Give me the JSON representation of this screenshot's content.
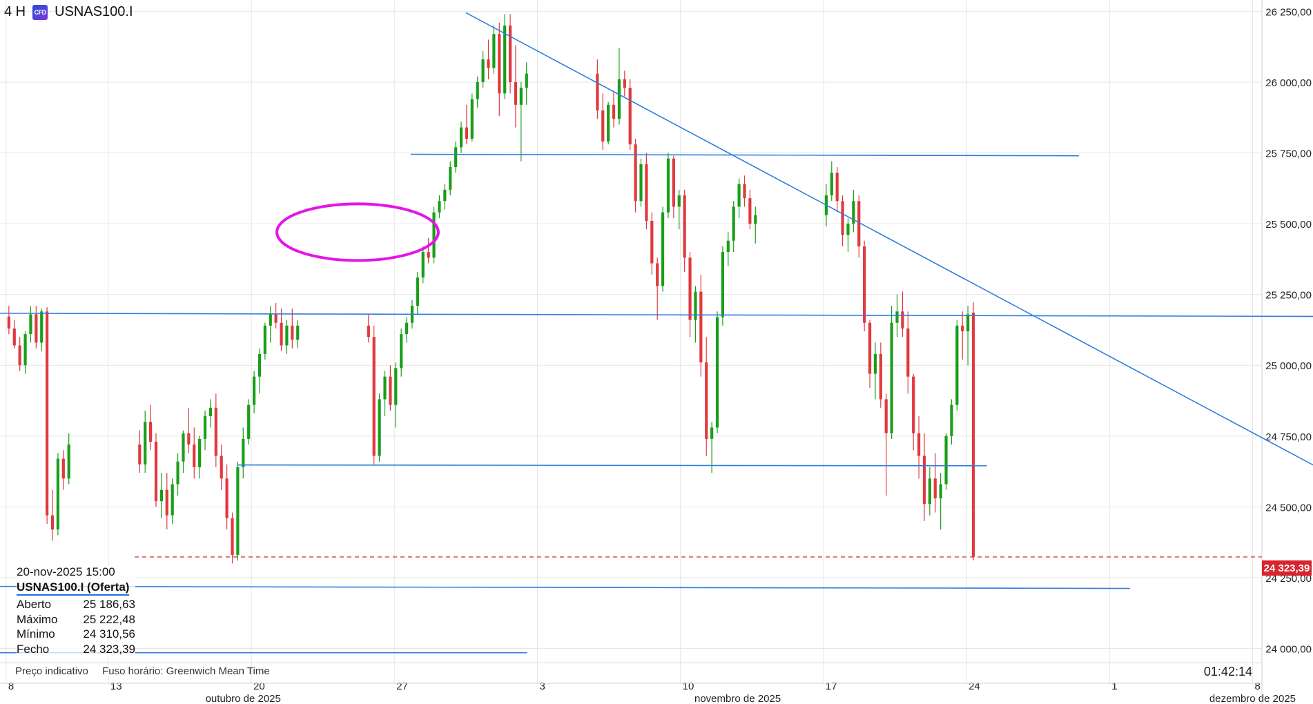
{
  "header": {
    "timeframe": "4 H",
    "symbol": "USNAS100.I",
    "cfd_icon": "cfd-icon"
  },
  "info_panel": {
    "datetime": "20-nov-2025 15:00",
    "symbol": "USNAS100.I (Oferta)",
    "rows": [
      {
        "label": "Aberto",
        "value": "25 186,63"
      },
      {
        "label": "Máximo",
        "value": "25 222,48"
      },
      {
        "label": "Mínimo",
        "value": "24 310,56"
      },
      {
        "label": "Fecho",
        "value": "24 323,39"
      }
    ]
  },
  "footer": {
    "price_type": "Preço indicativo",
    "timezone": "Fuso horário: Greenwich Mean Time",
    "countdown": "01:42:14"
  },
  "last_price_label": "24 323,39",
  "colors": {
    "up": "#1a9e1a",
    "down": "#e0393e",
    "trendline": "#2f7de0",
    "marker": "#e614e6",
    "grid": "#e6e6e6",
    "price_line": "#e0393e"
  },
  "chart_data": {
    "type": "candlestick",
    "ylim": [
      23950,
      26290
    ],
    "y_ticks": [
      24000,
      24250,
      24500,
      24750,
      25000,
      25250,
      25500,
      25750,
      26000,
      26250
    ],
    "y_tick_labels": [
      "24 000,00",
      "24 250,00",
      "24 500,00",
      "24 750,00",
      "25 000,00",
      "25 250,00",
      "25 500,00",
      "25 750,00",
      "26 000,00",
      "26 250,00"
    ],
    "x_ticks": [
      {
        "label": "8",
        "day": 8
      },
      {
        "label": "13",
        "day": 13
      },
      {
        "label": "20",
        "day": 20
      },
      {
        "label": "27",
        "day": 27
      },
      {
        "label": "3",
        "day": 34
      },
      {
        "label": "10",
        "day": 41
      },
      {
        "label": "17",
        "day": 48
      },
      {
        "label": "24",
        "day": 55
      },
      {
        "label": "1",
        "day": 62
      },
      {
        "label": "8",
        "day": 69
      }
    ],
    "month_labels": [
      {
        "label": "outubro de 2025",
        "day": 19.6
      },
      {
        "label": "novembro de 2025",
        "day": 43.8
      },
      {
        "label": "dezembro de 2025",
        "day": 69
      }
    ],
    "candles": [
      [
        25172,
        25210,
        25110,
        25130
      ],
      [
        25130,
        25160,
        25060,
        25070
      ],
      [
        25070,
        25100,
        24980,
        25000
      ],
      [
        25000,
        25120,
        24970,
        25110
      ],
      [
        25110,
        25210,
        25080,
        25180
      ],
      [
        25180,
        25210,
        25060,
        25080
      ],
      [
        25080,
        25200,
        25050,
        25190
      ],
      [
        25190,
        25205,
        24440,
        24470
      ],
      [
        24470,
        24560,
        24380,
        24420
      ],
      [
        24420,
        24690,
        24400,
        24670
      ],
      [
        24670,
        24700,
        24560,
        24600
      ],
      [
        24600,
        24760,
        24580,
        24720
      ],
      [
        24720,
        24770,
        24620,
        24650
      ],
      [
        24650,
        24840,
        24620,
        24800
      ],
      [
        24800,
        24860,
        24700,
        24730
      ],
      [
        24730,
        24760,
        24500,
        24520
      ],
      [
        24520,
        24620,
        24460,
        24560
      ],
      [
        24560,
        24620,
        24420,
        24470
      ],
      [
        24470,
        24600,
        24440,
        24580
      ],
      [
        24580,
        24690,
        24540,
        24660
      ],
      [
        24660,
        24770,
        24620,
        24760
      ],
      [
        24760,
        24850,
        24690,
        24720
      ],
      [
        24720,
        24780,
        24600,
        24640
      ],
      [
        24640,
        24750,
        24600,
        24740
      ],
      [
        24740,
        24840,
        24700,
        24820
      ],
      [
        24820,
        24880,
        24780,
        24850
      ],
      [
        24850,
        24900,
        24640,
        24680
      ],
      [
        24680,
        24720,
        24560,
        24600
      ],
      [
        24600,
        24650,
        24420,
        24460
      ],
      [
        24460,
        24480,
        24300,
        24330
      ],
      [
        24330,
        24660,
        24310,
        24640
      ],
      [
        24640,
        24780,
        24600,
        24740
      ],
      [
        24740,
        24880,
        24720,
        24860
      ],
      [
        24860,
        24980,
        24830,
        24960
      ],
      [
        24960,
        25060,
        24900,
        25040
      ],
      [
        25040,
        25150,
        25020,
        25140
      ],
      [
        25140,
        25210,
        25080,
        25180
      ],
      [
        25180,
        25220,
        25130,
        25150
      ],
      [
        25150,
        25200,
        25050,
        25070
      ],
      [
        25070,
        25160,
        25040,
        25140
      ],
      [
        25140,
        25200,
        25060,
        25090
      ],
      [
        25090,
        25160,
        25060,
        25140
      ],
      [
        25140,
        25180,
        25080,
        25100
      ],
      [
        25100,
        25140,
        24650,
        24680
      ],
      [
        24680,
        24900,
        24660,
        24880
      ],
      [
        24880,
        24980,
        24820,
        24960
      ],
      [
        24960,
        25000,
        24840,
        24860
      ],
      [
        24860,
        25010,
        24780,
        24990
      ],
      [
        24990,
        25130,
        24960,
        25110
      ],
      [
        25110,
        25170,
        25080,
        25150
      ],
      [
        25150,
        25230,
        25130,
        25210
      ],
      [
        25210,
        25330,
        25180,
        25310
      ],
      [
        25310,
        25420,
        25290,
        25400
      ],
      [
        25400,
        25450,
        25360,
        25380
      ],
      [
        25380,
        25560,
        25360,
        25540
      ],
      [
        25540,
        25600,
        25520,
        25580
      ],
      [
        25580,
        25640,
        25550,
        25620
      ],
      [
        25620,
        25720,
        25600,
        25700
      ],
      [
        25700,
        25790,
        25680,
        25770
      ],
      [
        25770,
        25860,
        25750,
        25840
      ],
      [
        25840,
        25920,
        25780,
        25800
      ],
      [
        25800,
        25960,
        25790,
        25940
      ],
      [
        25940,
        26020,
        25910,
        26000
      ],
      [
        26000,
        26110,
        25980,
        26080
      ],
      [
        26080,
        26150,
        26010,
        26050
      ],
      [
        26050,
        26200,
        26030,
        26170
      ],
      [
        26170,
        26210,
        25880,
        25960
      ],
      [
        25960,
        26240,
        25940,
        26200
      ],
      [
        26200,
        26240,
        25960,
        26000
      ],
      [
        26000,
        26130,
        25840,
        25920
      ],
      [
        25920,
        26000,
        25720,
        25980
      ],
      [
        25980,
        26070,
        25920,
        26030
      ],
      [
        26030,
        26080,
        25870,
        25900
      ],
      [
        25900,
        25960,
        25760,
        25790
      ],
      [
        25790,
        25930,
        25780,
        25920
      ],
      [
        25920,
        25970,
        25840,
        25870
      ],
      [
        25870,
        26120,
        25850,
        26010
      ],
      [
        26010,
        26040,
        25950,
        25980
      ],
      [
        25980,
        26010,
        25760,
        25780
      ],
      [
        25780,
        25800,
        25540,
        25580
      ],
      [
        25580,
        25730,
        25560,
        25710
      ],
      [
        25710,
        25750,
        25480,
        25510
      ],
      [
        25510,
        25540,
        25320,
        25360
      ],
      [
        25360,
        25380,
        25160,
        25280
      ],
      [
        25280,
        25560,
        25260,
        25540
      ],
      [
        25540,
        25750,
        25520,
        25730
      ],
      [
        25730,
        25740,
        25520,
        25560
      ],
      [
        25560,
        25620,
        25480,
        25600
      ],
      [
        25600,
        25620,
        25330,
        25380
      ],
      [
        25380,
        25400,
        25100,
        25160
      ],
      [
        25160,
        25280,
        25080,
        25260
      ],
      [
        25260,
        25320,
        24960,
        25010
      ],
      [
        25010,
        25100,
        24680,
        24740
      ],
      [
        24740,
        24800,
        24620,
        24780
      ],
      [
        24780,
        25190,
        24760,
        25170
      ],
      [
        25170,
        25420,
        25140,
        25400
      ],
      [
        25400,
        25470,
        25350,
        25440
      ],
      [
        25440,
        25580,
        25400,
        25560
      ],
      [
        25560,
        25660,
        25520,
        25640
      ],
      [
        25640,
        25670,
        25560,
        25590
      ],
      [
        25590,
        25620,
        25480,
        25500
      ],
      [
        25500,
        25560,
        25430,
        25530
      ],
      [
        25530,
        25640,
        25490,
        25600
      ],
      [
        25600,
        25720,
        25580,
        25680
      ],
      [
        25680,
        25700,
        25540,
        25580
      ],
      [
        25580,
        25600,
        25420,
        25460
      ],
      [
        25460,
        25520,
        25400,
        25500
      ],
      [
        25500,
        25620,
        25470,
        25580
      ],
      [
        25580,
        25600,
        25380,
        25420
      ],
      [
        25420,
        25440,
        25120,
        25150
      ],
      [
        25150,
        25160,
        24920,
        24970
      ],
      [
        24970,
        25080,
        24880,
        25040
      ],
      [
        25040,
        25080,
        24850,
        24880
      ],
      [
        24880,
        24900,
        24540,
        24760
      ],
      [
        24760,
        25210,
        24740,
        25150
      ],
      [
        25150,
        25250,
        25100,
        25190
      ],
      [
        25190,
        25260,
        25100,
        25130
      ],
      [
        25130,
        25190,
        24900,
        24960
      ],
      [
        24960,
        24970,
        24700,
        24760
      ],
      [
        24760,
        24820,
        24600,
        24680
      ],
      [
        24680,
        24760,
        24450,
        24510
      ],
      [
        24510,
        24640,
        24470,
        24600
      ],
      [
        24600,
        24690,
        24480,
        24530
      ],
      [
        24530,
        24620,
        24420,
        24580
      ],
      [
        24580,
        24760,
        24560,
        24750
      ],
      [
        24750,
        24880,
        24720,
        24860
      ],
      [
        24860,
        25160,
        24840,
        25140
      ],
      [
        25140,
        25190,
        25020,
        25120
      ],
      [
        25120,
        25210,
        25000,
        25180
      ],
      [
        25186,
        25222,
        24311,
        24323
      ]
    ],
    "lines": [
      {
        "kind": "trendline",
        "x1": 30.5,
        "y1": 26245,
        "x2": 74.5,
        "y2": 24550
      },
      {
        "kind": "level",
        "x1": 27.8,
        "y1": 25745,
        "x2": 60.5,
        "y2": 25740
      },
      {
        "kind": "level",
        "x1": 0,
        "y1": 25185,
        "x2": 75.5,
        "y2": 25172
      },
      {
        "kind": "level",
        "x1": 19.3,
        "y1": 24648,
        "x2": 56,
        "y2": 24645
      },
      {
        "kind": "level",
        "x1": 0,
        "y1": 24220,
        "x2": 63,
        "y2": 24212
      },
      {
        "kind": "level",
        "x1": 0,
        "y1": 23985,
        "x2": 33.5,
        "y2": 23985
      }
    ],
    "marker": {
      "kind": "ellipse",
      "x": 25.2,
      "y": 25470,
      "rx": 3.95,
      "ry": 100
    }
  }
}
